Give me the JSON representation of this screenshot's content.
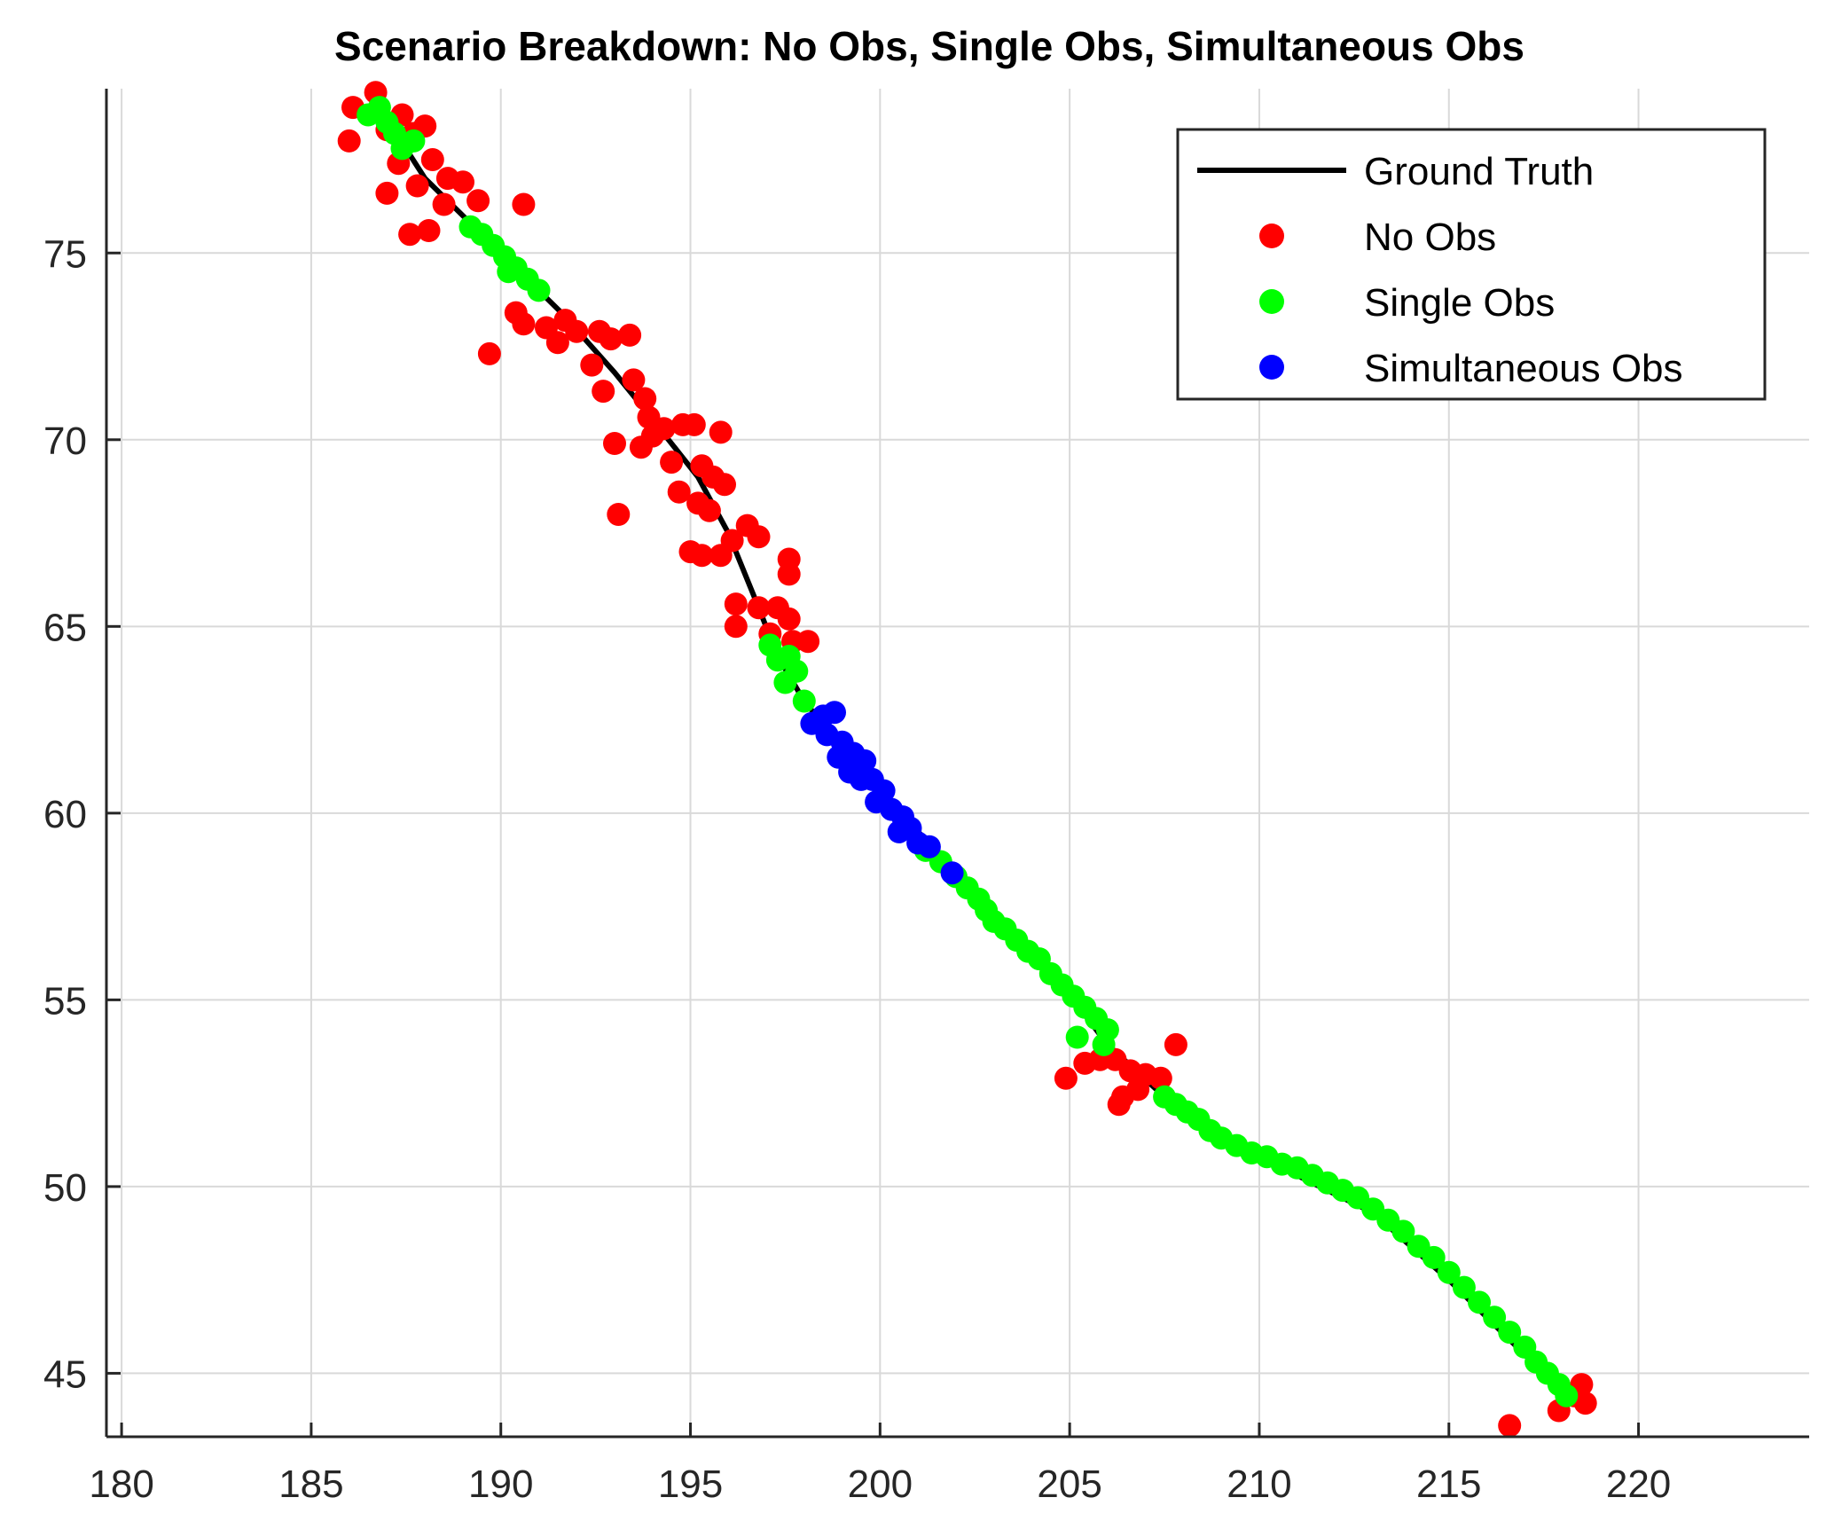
{
  "chart_data": {
    "type": "scatter",
    "title": "Scenario Breakdown: No Obs, Single Obs, Simultaneous Obs",
    "xlabel": "",
    "ylabel": "",
    "xlim": [
      179.6,
      224.5
    ],
    "ylim": [
      43.3,
      79.4
    ],
    "xticks": [
      180,
      185,
      190,
      195,
      200,
      205,
      210,
      215,
      220
    ],
    "yticks": [
      45,
      50,
      55,
      60,
      65,
      70,
      75
    ],
    "grid": true,
    "legend_position": "top-right",
    "legend": [
      "Ground Truth",
      "No Obs",
      "Single Obs",
      "Simultaneous Obs"
    ],
    "series": [
      {
        "name": "Ground Truth",
        "kind": "line",
        "color": "#000000",
        "points": [
          [
            186.8,
            78.9
          ],
          [
            188.0,
            77.0
          ],
          [
            189.2,
            75.8
          ],
          [
            190.4,
            74.6
          ],
          [
            191.6,
            73.4
          ],
          [
            193.0,
            71.8
          ],
          [
            193.8,
            70.8
          ],
          [
            195.2,
            69.0
          ],
          [
            196.0,
            67.5
          ],
          [
            196.8,
            65.5
          ],
          [
            197.3,
            64.2
          ],
          [
            198.0,
            63.0
          ],
          [
            198.8,
            62.0
          ],
          [
            200.0,
            60.5
          ],
          [
            201.5,
            59.0
          ],
          [
            203.0,
            57.3
          ],
          [
            204.5,
            55.8
          ],
          [
            206.0,
            53.8
          ],
          [
            207.5,
            52.4
          ],
          [
            209.0,
            51.2
          ],
          [
            211.0,
            50.3
          ],
          [
            213.0,
            49.3
          ],
          [
            215.0,
            47.5
          ],
          [
            216.5,
            46.0
          ],
          [
            218.0,
            44.5
          ]
        ]
      },
      {
        "name": "No Obs",
        "kind": "scatter",
        "color": "#ff0000",
        "points": [
          [
            186.1,
            78.9
          ],
          [
            186.7,
            79.3
          ],
          [
            187.0,
            78.3
          ],
          [
            187.4,
            78.7
          ],
          [
            187.7,
            78.2
          ],
          [
            188.0,
            78.4
          ],
          [
            186.0,
            78.0
          ],
          [
            187.3,
            77.4
          ],
          [
            188.2,
            77.5
          ],
          [
            188.6,
            77.0
          ],
          [
            189.0,
            76.9
          ],
          [
            187.8,
            76.8
          ],
          [
            187.0,
            76.6
          ],
          [
            188.5,
            76.3
          ],
          [
            189.4,
            76.4
          ],
          [
            190.6,
            76.3
          ],
          [
            187.6,
            75.5
          ],
          [
            188.1,
            75.6
          ],
          [
            189.7,
            72.3
          ],
          [
            190.4,
            73.4
          ],
          [
            190.6,
            73.1
          ],
          [
            191.2,
            73.0
          ],
          [
            191.7,
            73.2
          ],
          [
            192.0,
            72.9
          ],
          [
            191.5,
            72.6
          ],
          [
            192.6,
            72.9
          ],
          [
            192.9,
            72.7
          ],
          [
            193.4,
            72.8
          ],
          [
            192.4,
            72.0
          ],
          [
            192.7,
            71.3
          ],
          [
            193.5,
            71.6
          ],
          [
            193.8,
            71.1
          ],
          [
            193.9,
            70.6
          ],
          [
            194.3,
            70.3
          ],
          [
            193.0,
            69.9
          ],
          [
            193.7,
            69.8
          ],
          [
            194.0,
            70.1
          ],
          [
            194.8,
            70.4
          ],
          [
            195.1,
            70.4
          ],
          [
            195.8,
            70.2
          ],
          [
            194.5,
            69.4
          ],
          [
            195.3,
            69.3
          ],
          [
            195.6,
            69.0
          ],
          [
            195.9,
            68.8
          ],
          [
            194.7,
            68.6
          ],
          [
            195.2,
            68.3
          ],
          [
            195.5,
            68.1
          ],
          [
            193.1,
            68.0
          ],
          [
            195.0,
            67.0
          ],
          [
            195.3,
            66.9
          ],
          [
            196.1,
            67.3
          ],
          [
            196.5,
            67.7
          ],
          [
            196.8,
            67.4
          ],
          [
            195.8,
            66.9
          ],
          [
            197.6,
            66.8
          ],
          [
            197.6,
            66.4
          ],
          [
            196.2,
            65.6
          ],
          [
            196.8,
            65.5
          ],
          [
            197.3,
            65.5
          ],
          [
            197.6,
            65.2
          ],
          [
            196.2,
            65.0
          ],
          [
            197.1,
            64.8
          ],
          [
            197.7,
            64.6
          ],
          [
            198.1,
            64.6
          ],
          [
            204.9,
            52.9
          ],
          [
            205.4,
            53.3
          ],
          [
            205.8,
            53.4
          ],
          [
            206.2,
            53.4
          ],
          [
            206.6,
            53.1
          ],
          [
            207.0,
            53.0
          ],
          [
            207.4,
            52.9
          ],
          [
            206.8,
            52.6
          ],
          [
            206.4,
            52.4
          ],
          [
            206.3,
            52.2
          ],
          [
            207.8,
            53.8
          ],
          [
            216.6,
            43.6
          ],
          [
            217.9,
            44.0
          ],
          [
            218.3,
            44.4
          ],
          [
            218.5,
            44.7
          ],
          [
            218.6,
            44.2
          ]
        ]
      },
      {
        "name": "Single Obs",
        "kind": "scatter",
        "color": "#00ff00",
        "points": [
          [
            186.5,
            78.7
          ],
          [
            186.8,
            78.9
          ],
          [
            187.0,
            78.5
          ],
          [
            187.2,
            78.2
          ],
          [
            187.4,
            77.8
          ],
          [
            187.7,
            78.0
          ],
          [
            189.2,
            75.7
          ],
          [
            189.5,
            75.5
          ],
          [
            189.8,
            75.2
          ],
          [
            190.1,
            74.9
          ],
          [
            190.4,
            74.6
          ],
          [
            190.7,
            74.3
          ],
          [
            191.0,
            74.0
          ],
          [
            190.2,
            74.5
          ],
          [
            197.1,
            64.5
          ],
          [
            197.3,
            64.1
          ],
          [
            197.6,
            64.2
          ],
          [
            197.8,
            63.8
          ],
          [
            197.5,
            63.5
          ],
          [
            198.0,
            63.0
          ],
          [
            201.2,
            59.0
          ],
          [
            201.6,
            58.7
          ],
          [
            202.0,
            58.3
          ],
          [
            202.3,
            58.0
          ],
          [
            202.6,
            57.7
          ],
          [
            202.8,
            57.4
          ],
          [
            203.0,
            57.1
          ],
          [
            203.3,
            56.9
          ],
          [
            203.6,
            56.6
          ],
          [
            203.9,
            56.3
          ],
          [
            204.2,
            56.1
          ],
          [
            204.5,
            55.7
          ],
          [
            204.8,
            55.4
          ],
          [
            205.1,
            55.1
          ],
          [
            205.4,
            54.8
          ],
          [
            205.7,
            54.5
          ],
          [
            206.0,
            54.2
          ],
          [
            205.2,
            54.0
          ],
          [
            205.9,
            53.8
          ],
          [
            207.5,
            52.4
          ],
          [
            207.8,
            52.2
          ],
          [
            208.1,
            52.0
          ],
          [
            208.4,
            51.8
          ],
          [
            208.7,
            51.5
          ],
          [
            209.0,
            51.3
          ],
          [
            209.4,
            51.1
          ],
          [
            209.8,
            50.9
          ],
          [
            210.2,
            50.8
          ],
          [
            210.6,
            50.6
          ],
          [
            211.0,
            50.5
          ],
          [
            211.4,
            50.3
          ],
          [
            211.8,
            50.1
          ],
          [
            212.2,
            49.9
          ],
          [
            212.6,
            49.7
          ],
          [
            213.0,
            49.4
          ],
          [
            213.4,
            49.1
          ],
          [
            213.8,
            48.8
          ],
          [
            214.2,
            48.4
          ],
          [
            214.6,
            48.1
          ],
          [
            215.0,
            47.7
          ],
          [
            215.4,
            47.3
          ],
          [
            215.8,
            46.9
          ],
          [
            216.2,
            46.5
          ],
          [
            216.6,
            46.1
          ],
          [
            217.0,
            45.7
          ],
          [
            217.3,
            45.3
          ],
          [
            217.6,
            45.0
          ],
          [
            217.9,
            44.7
          ],
          [
            218.1,
            44.4
          ]
        ]
      },
      {
        "name": "Simultaneous Obs",
        "kind": "scatter",
        "color": "#0000ff",
        "points": [
          [
            198.2,
            62.4
          ],
          [
            198.5,
            62.6
          ],
          [
            198.8,
            62.7
          ],
          [
            198.6,
            62.1
          ],
          [
            199.0,
            61.9
          ],
          [
            199.3,
            61.6
          ],
          [
            198.9,
            61.5
          ],
          [
            199.6,
            61.4
          ],
          [
            199.2,
            61.1
          ],
          [
            199.8,
            60.9
          ],
          [
            199.5,
            60.9
          ],
          [
            200.1,
            60.6
          ],
          [
            199.9,
            60.3
          ],
          [
            200.3,
            60.1
          ],
          [
            200.6,
            59.9
          ],
          [
            200.8,
            59.6
          ],
          [
            200.5,
            59.5
          ],
          [
            201.0,
            59.2
          ],
          [
            201.3,
            59.1
          ],
          [
            201.9,
            58.4
          ]
        ]
      }
    ]
  }
}
